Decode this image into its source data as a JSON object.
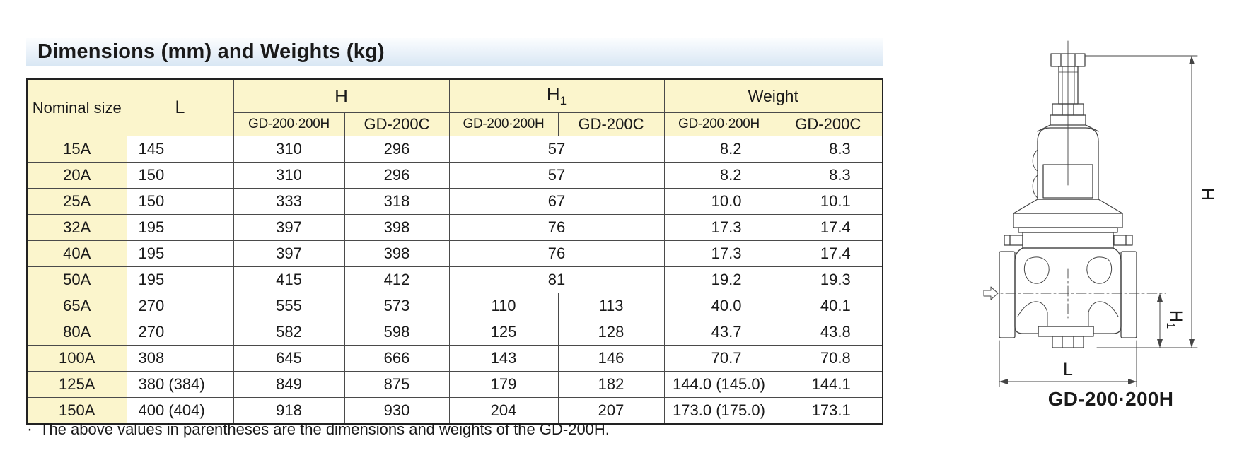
{
  "title": "Dimensions (mm) and Weights (kg)",
  "table": {
    "headers": {
      "nominal_size": "Nominal size",
      "l": "L",
      "h": "H",
      "h1_base": "H",
      "h1_sub": "1",
      "weight": "Weight",
      "sub_gd200_200h": "GD-200·200H",
      "sub_gd200c": "GD-200C"
    },
    "rows": [
      {
        "size": "15A",
        "l": "145",
        "h_200h": "310",
        "h_200c": "296",
        "h1_merged": true,
        "h1": "57",
        "w_200h": "8.2",
        "w_200c": "8.3"
      },
      {
        "size": "20A",
        "l": "150",
        "h_200h": "310",
        "h_200c": "296",
        "h1_merged": true,
        "h1": "57",
        "w_200h": "8.2",
        "w_200c": "8.3"
      },
      {
        "size": "25A",
        "l": "150",
        "h_200h": "333",
        "h_200c": "318",
        "h1_merged": true,
        "h1": "67",
        "w_200h": "10.0",
        "w_200c": "10.1"
      },
      {
        "size": "32A",
        "l": "195",
        "h_200h": "397",
        "h_200c": "398",
        "h1_merged": true,
        "h1": "76",
        "w_200h": "17.3",
        "w_200c": "17.4"
      },
      {
        "size": "40A",
        "l": "195",
        "h_200h": "397",
        "h_200c": "398",
        "h1_merged": true,
        "h1": "76",
        "w_200h": "17.3",
        "w_200c": "17.4"
      },
      {
        "size": "50A",
        "l": "195",
        "h_200h": "415",
        "h_200c": "412",
        "h1_merged": true,
        "h1": "81",
        "w_200h": "19.2",
        "w_200c": "19.3"
      },
      {
        "size": "65A",
        "l": "270",
        "h_200h": "555",
        "h_200c": "573",
        "h1_merged": false,
        "h1_200h": "110",
        "h1_200c": "113",
        "w_200h": "40.0",
        "w_200c": "40.1"
      },
      {
        "size": "80A",
        "l": "270",
        "h_200h": "582",
        "h_200c": "598",
        "h1_merged": false,
        "h1_200h": "125",
        "h1_200c": "128",
        "w_200h": "43.7",
        "w_200c": "43.8"
      },
      {
        "size": "100A",
        "l": "308",
        "h_200h": "645",
        "h_200c": "666",
        "h1_merged": false,
        "h1_200h": "143",
        "h1_200c": "146",
        "w_200h": "70.7",
        "w_200c": "70.8"
      },
      {
        "size": "125A",
        "l": "380 (384)",
        "h_200h": "849",
        "h_200c": "875",
        "h1_merged": false,
        "h1_200h": "179",
        "h1_200c": "182",
        "w_200h": "144.0 (145.0)",
        "w_200c": "144.1"
      },
      {
        "size": "150A",
        "l": "400 (404)",
        "h_200h": "918",
        "h_200c": "930",
        "h1_merged": false,
        "h1_200h": "204",
        "h1_200c": "207",
        "w_200h": "173.0 (175.0)",
        "w_200c": "173.1"
      }
    ]
  },
  "footnote": {
    "bullet": "·",
    "text": "The above values in parentheses are the dimensions and weights of the GD-200H."
  },
  "figure": {
    "caption": "GD-200·200H",
    "labels": {
      "h": "H",
      "h1_base": "H",
      "h1_sub": "1",
      "l": "L"
    }
  },
  "colors": {
    "header_bg": "#fbf5cc",
    "title_bar_bottom": "#d9e7f4",
    "border": "#4a4a4a",
    "text": "#1a1a1a"
  }
}
